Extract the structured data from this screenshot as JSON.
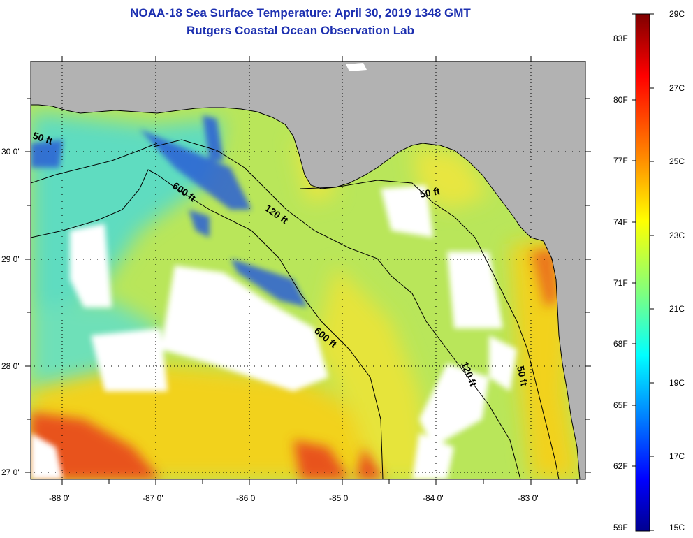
{
  "title": {
    "line1": "NOAA-18 Sea Surface Temperature:  April 30, 2019 1348 GMT",
    "line2": "Rutgers Coastal Ocean Observation Lab"
  },
  "map": {
    "lat_labels": [
      "30 0'",
      "29 0'",
      "28 0'",
      "27 0'"
    ],
    "lon_labels": [
      "-88 0'",
      "-87 0'",
      "-86 0'",
      "-85 0'",
      "-84 0'",
      "-83 0'"
    ],
    "depth_labels": [
      "50 ft",
      "600 ft",
      "120 ft",
      "50 ft",
      "600 ft",
      "120 ft",
      "50 ft"
    ],
    "colors": {
      "land": "#b2b2b2",
      "cloud": "#ffffff",
      "water_base": "#b9e65a",
      "cold": "#2c5fd6",
      "warm": "#f2d21e",
      "hot": "#e8531a"
    }
  },
  "colorbar": {
    "f_labels": [
      "83F",
      "80F",
      "77F",
      "74F",
      "71F",
      "68F",
      "65F",
      "62F",
      "59F"
    ],
    "c_labels": [
      "29C",
      "27C",
      "25C",
      "23C",
      "21C",
      "19C",
      "17C",
      "15C"
    ],
    "range_c": [
      15,
      29
    ],
    "gradient_stops": [
      "#7f0000",
      "#ff0000",
      "#ff8c00",
      "#ffff00",
      "#7fff7f",
      "#00ffff",
      "#0080ff",
      "#0000ff",
      "#00008f"
    ]
  }
}
